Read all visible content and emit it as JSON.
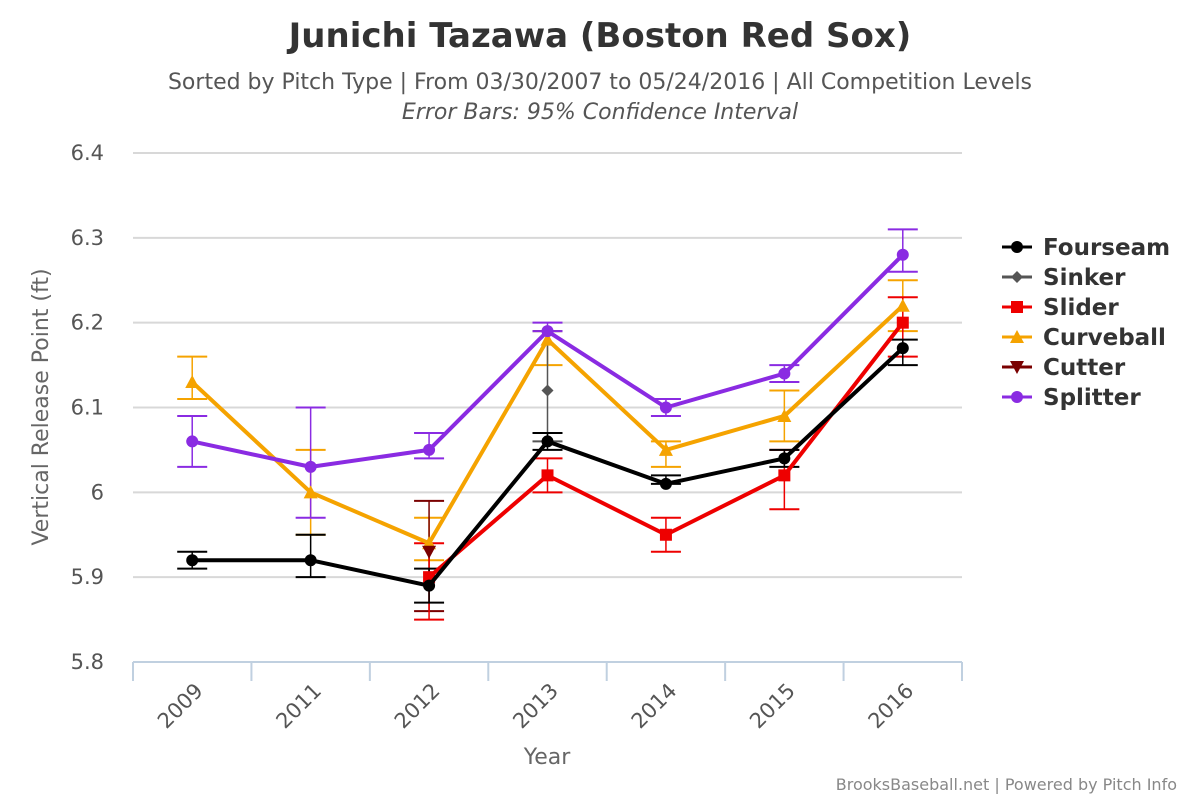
{
  "chart_data": {
    "type": "line",
    "title": "Junichi Tazawa (Boston Red Sox)",
    "subtitle": "Sorted by Pitch Type | From 03/30/2007 to 05/24/2016 | All Competition Levels",
    "subtitle2": "Error Bars: 95% Confidence Interval",
    "xlabel": "Year",
    "ylabel": "Vertical Release Point (ft)",
    "categories": [
      "2009",
      "2011",
      "2012",
      "2013",
      "2014",
      "2015",
      "2016"
    ],
    "ylim": [
      5.8,
      6.4
    ],
    "yticks": [
      "5.8",
      "5.9",
      "6",
      "6.1",
      "6.2",
      "6.3",
      "6.4"
    ],
    "grid": true,
    "legend_position": "right",
    "credit": "BrooksBaseball.net | Powered by Pitch Info",
    "series": [
      {
        "name": "Curveball",
        "color": "#f5a300",
        "marker": "triangle",
        "line": true,
        "values": [
          6.13,
          6.0,
          5.94,
          6.18,
          6.05,
          6.09,
          6.22
        ],
        "errors": [
          [
            6.11,
            6.16
          ],
          [
            5.95,
            6.05
          ],
          [
            5.92,
            5.97
          ],
          [
            6.15,
            6.19
          ],
          [
            6.03,
            6.06
          ],
          [
            6.06,
            6.12
          ],
          [
            6.19,
            6.25
          ]
        ]
      },
      {
        "name": "Cutter",
        "color": "#7a0000",
        "marker": "triangle-down",
        "line": false,
        "values": [
          null,
          null,
          5.93,
          null,
          null,
          null,
          null
        ],
        "errors": [
          null,
          null,
          [
            5.86,
            5.99
          ],
          null,
          null,
          null,
          null
        ]
      },
      {
        "name": "Sinker",
        "color": "#555555",
        "marker": "diamond",
        "line": false,
        "values": [
          null,
          null,
          null,
          6.12,
          null,
          null,
          null
        ],
        "errors": [
          null,
          null,
          null,
          [
            6.06,
            6.19
          ],
          null,
          null,
          null
        ]
      },
      {
        "name": "Slider",
        "color": "#ee0000",
        "marker": "square",
        "line": true,
        "values": [
          null,
          null,
          5.9,
          6.02,
          5.95,
          6.02,
          6.2
        ],
        "errors": [
          null,
          null,
          [
            5.85,
            5.94
          ],
          [
            6.0,
            6.04
          ],
          [
            5.93,
            5.97
          ],
          [
            5.98,
            6.05
          ],
          [
            6.16,
            6.23
          ]
        ]
      },
      {
        "name": "Fourseam",
        "color": "#000000",
        "marker": "circle",
        "line": true,
        "values": [
          5.92,
          5.92,
          5.89,
          6.06,
          6.01,
          6.04,
          6.17
        ],
        "errors": [
          [
            5.91,
            5.93
          ],
          [
            5.9,
            5.95
          ],
          [
            5.87,
            5.91
          ],
          [
            6.05,
            6.07
          ],
          [
            6.01,
            6.02
          ],
          [
            6.03,
            6.05
          ],
          [
            6.15,
            6.18
          ]
        ]
      },
      {
        "name": "Splitter",
        "color": "#8a2be2",
        "marker": "circle",
        "line": true,
        "values": [
          6.06,
          6.03,
          6.05,
          6.19,
          6.1,
          6.14,
          6.28
        ],
        "errors": [
          [
            6.03,
            6.09
          ],
          [
            5.97,
            6.1
          ],
          [
            6.04,
            6.07
          ],
          [
            6.19,
            6.2
          ],
          [
            6.09,
            6.11
          ],
          [
            6.13,
            6.15
          ],
          [
            6.26,
            6.31
          ]
        ]
      }
    ],
    "legend": [
      {
        "name": "Fourseam",
        "color": "#000000",
        "marker": "circle"
      },
      {
        "name": "Sinker",
        "color": "#555555",
        "marker": "diamond"
      },
      {
        "name": "Slider",
        "color": "#ee0000",
        "marker": "square"
      },
      {
        "name": "Curveball",
        "color": "#f5a300",
        "marker": "triangle"
      },
      {
        "name": "Cutter",
        "color": "#7a0000",
        "marker": "triangle-down"
      },
      {
        "name": "Splitter",
        "color": "#8a2be2",
        "marker": "circle"
      }
    ]
  }
}
